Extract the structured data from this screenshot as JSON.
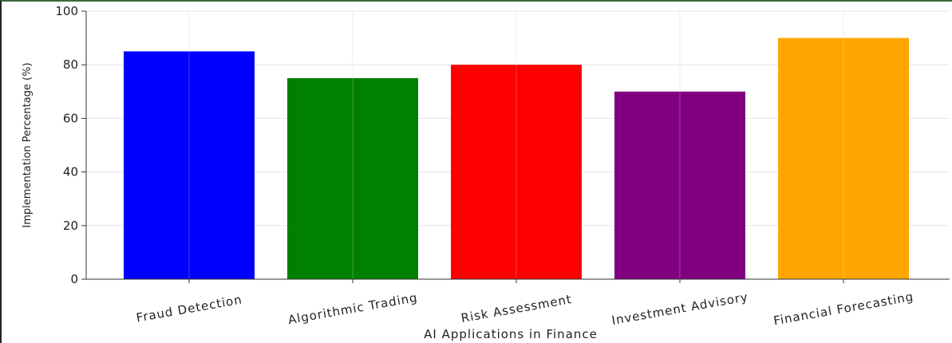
{
  "chart_data": {
    "type": "bar",
    "title": "",
    "categories": [
      "Fraud Detection",
      "Algorithmic Trading",
      "Risk Assessment",
      "Investment Advisory",
      "Financial Forecasting"
    ],
    "values": [
      85,
      75,
      80,
      70,
      90
    ],
    "colors": [
      "#0000ff",
      "#008000",
      "#ff0000",
      "#800080",
      "#ffa500"
    ],
    "xlabel": "AI Applications in Finance",
    "ylabel": "Implementation Percentage (%)",
    "ylim": [
      0,
      100
    ],
    "yticks": [
      "0",
      "20",
      "40",
      "60",
      "80",
      "100"
    ],
    "grid": true,
    "legend": "none"
  }
}
